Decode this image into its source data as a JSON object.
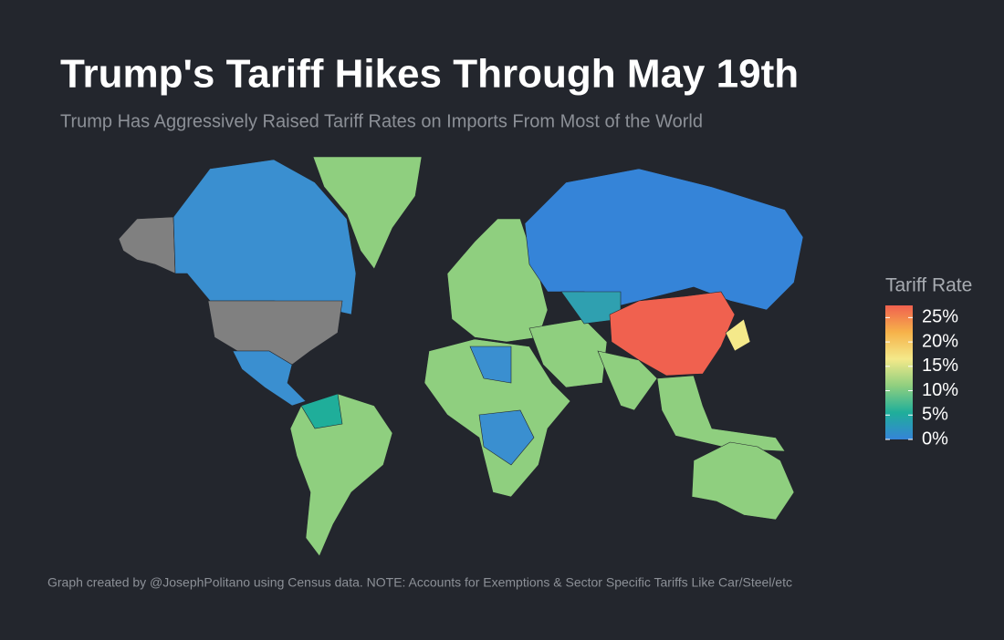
{
  "chart_data": {
    "type": "choropleth",
    "title": "Trump's Tariff Hikes Through May 19th",
    "subtitle": "Trump Has Aggressively Raised Tariff Rates on Imports From Most of the World",
    "caption": "Graph created by @JosephPolitano using Census data. NOTE: Accounts for Exemptions & Sector Specific Tariffs Like Car/Steel/etc",
    "legend": {
      "title": "Tariff Rate",
      "lim": [
        0,
        27.5
      ],
      "ticks": [
        {
          "value": 0,
          "label": "0%"
        },
        {
          "value": 5,
          "label": "5%"
        },
        {
          "value": 10,
          "label": "10%"
        },
        {
          "value": 15,
          "label": "15%"
        },
        {
          "value": 20,
          "label": "20%"
        },
        {
          "value": 25,
          "label": "25%"
        }
      ],
      "colors": [
        "#3584d8",
        "#1fae9a",
        "#8fcf7f",
        "#f4e98a",
        "#f6b24a",
        "#f0614f"
      ]
    }
  }
}
